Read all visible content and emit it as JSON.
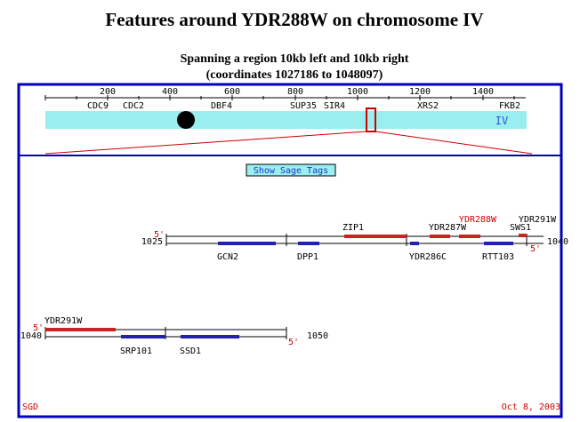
{
  "header": {
    "title": "Features around YDR288W on chromosome IV",
    "subtitle": [
      "Spanning a region 10kb left and 10kb right",
      "(coordinates 1027186 to 1048097)"
    ]
  },
  "chromosome": {
    "name": "IV",
    "scale_ticks": [
      200,
      400,
      600,
      800,
      1000,
      1200,
      1400
    ],
    "genes": [
      "CDC9",
      "CDC2",
      "DBF4",
      "SUP35",
      "SIR4",
      "XRS2",
      "FKB2"
    ]
  },
  "button": {
    "label": "Show Sage Tags"
  },
  "tracks": [
    {
      "start": 1025,
      "end": 1040,
      "left_strand": "5'",
      "right_strand": "5'",
      "above": [
        "ZIP1",
        "YDR287W",
        "YDR288W",
        "YDR291W",
        "SWS1"
      ],
      "below": [
        "GCN2",
        "DPP1",
        "YDR286C",
        "RTT103"
      ]
    },
    {
      "start": 1040,
      "end": 1050,
      "left_strand": "5'",
      "right_strand": "5'",
      "above": [
        "YDR291W"
      ],
      "below": [
        "SRP101",
        "SSD1"
      ]
    }
  ],
  "footer": {
    "source": "SGD",
    "date": "Oct 8, 2003"
  }
}
